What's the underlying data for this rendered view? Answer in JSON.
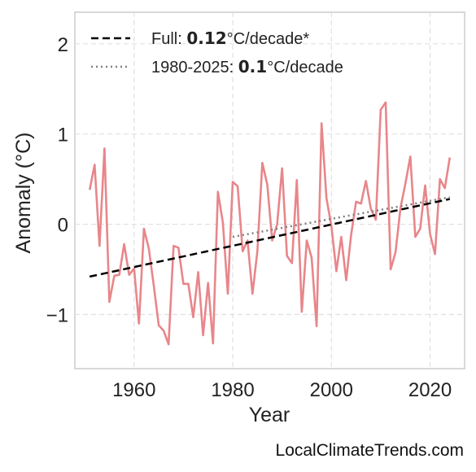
{
  "colors": {
    "anomaly_line": "#e8868a",
    "trend_full": "#000000",
    "trend_recent": "#808080",
    "grid": "#e0e0e0",
    "frame": "#cccccc"
  },
  "legend": {
    "full_prefix": "Full: ",
    "full_rate": "0.12",
    "full_suffix": "°C/decade*",
    "recent_prefix": "1980-2025: ",
    "recent_rate": "0.1",
    "recent_suffix": "°C/decade"
  },
  "watermark": "LocalClimateTrends.com",
  "chart_data": {
    "type": "line",
    "xlabel": "Year",
    "ylabel": "Anomaly (°C)",
    "xlim": [
      1948,
      2027
    ],
    "ylim": [
      -1.6,
      2.35
    ],
    "xticks": [
      1960,
      1980,
      2000,
      2020
    ],
    "yticks": [
      -1,
      0,
      1,
      2
    ],
    "ytick_labels": [
      "−1",
      "0",
      "1",
      "2"
    ],
    "grid": true,
    "legend_position": "top-left",
    "x": [
      1951,
      1952,
      1953,
      1954,
      1955,
      1956,
      1957,
      1958,
      1959,
      1960,
      1961,
      1962,
      1963,
      1964,
      1965,
      1966,
      1967,
      1968,
      1969,
      1970,
      1971,
      1972,
      1973,
      1974,
      1975,
      1976,
      1977,
      1978,
      1979,
      1980,
      1981,
      1982,
      1983,
      1984,
      1985,
      1986,
      1987,
      1988,
      1989,
      1990,
      1991,
      1992,
      1993,
      1994,
      1995,
      1996,
      1997,
      1998,
      1999,
      2000,
      2001,
      2002,
      2003,
      2004,
      2005,
      2006,
      2007,
      2008,
      2009,
      2010,
      2011,
      2012,
      2013,
      2014,
      2015,
      2016,
      2017,
      2018,
      2019,
      2020,
      2021,
      2022,
      2023,
      2024
    ],
    "series": [
      {
        "values": [
          0.38,
          0.66,
          -0.24,
          0.84,
          -0.86,
          -0.57,
          -0.56,
          -0.22,
          -0.56,
          -0.49,
          -1.1,
          -0.05,
          -0.27,
          -0.68,
          -1.12,
          -1.18,
          -1.33,
          -0.24,
          -0.26,
          -0.66,
          -0.66,
          -1.03,
          -0.53,
          -1.23,
          -0.65,
          -1.32,
          0.36,
          0.02,
          -0.77,
          0.47,
          0.42,
          -0.3,
          -0.18,
          -0.77,
          -0.3,
          0.68,
          0.44,
          -0.18,
          0.0,
          0.62,
          -0.35,
          -0.43,
          0.49,
          -0.97,
          -0.18,
          -0.37,
          -1.13,
          1.12,
          0.29,
          -0.02,
          -0.52,
          -0.14,
          -0.62,
          -0.12,
          0.25,
          0.23,
          0.48,
          0.17,
          0.05,
          1.27,
          1.35,
          -0.5,
          -0.31,
          0.18,
          0.45,
          0.75,
          -0.14,
          -0.05,
          0.43,
          -0.11,
          -0.33,
          0.5,
          0.4,
          0.74
        ]
      }
    ],
    "trends": [
      {
        "x": [
          1951,
          2024
        ],
        "y": [
          -0.58,
          0.28
        ],
        "style": "dashed"
      },
      {
        "x": [
          1980,
          2024
        ],
        "y": [
          -0.14,
          0.3
        ],
        "style": "dotted"
      }
    ]
  }
}
